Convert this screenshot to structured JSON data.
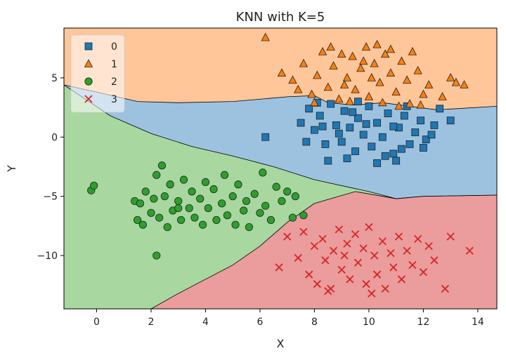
{
  "chart_data": {
    "type": "scatter",
    "title": "KNN with K=5",
    "xlabel": "X",
    "ylabel": "Y",
    "xlim": [
      -1.2,
      14.7
    ],
    "ylim": [
      -14.5,
      9.2
    ],
    "x_ticks": [
      0,
      2,
      4,
      6,
      8,
      10,
      12,
      14
    ],
    "x_tick_labels": [
      "0",
      "2",
      "4",
      "6",
      "8",
      "10",
      "12",
      "14"
    ],
    "y_ticks": [
      5,
      0,
      -5,
      -10
    ],
    "y_tick_labels": [
      "5",
      "0",
      "−5",
      "−10"
    ],
    "legend_position": "top-left",
    "grid": false,
    "legend": [
      {
        "label": "0",
        "marker": "square",
        "color": "#1f77b4"
      },
      {
        "label": "1",
        "marker": "triangle",
        "color": "#ff7f0e"
      },
      {
        "label": "2",
        "marker": "circle",
        "color": "#2ca02c"
      },
      {
        "label": "3",
        "marker": "x",
        "color": "#d62728"
      }
    ],
    "regions": {
      "0": {
        "color": "#9dc2e0"
      },
      "1": {
        "color": "#ffc69a"
      },
      "2": {
        "color": "#a8d7a0"
      },
      "3": {
        "color": "#eb9c9c"
      }
    },
    "series": [
      {
        "name": "0",
        "marker": "square",
        "color": "#1f77b4",
        "points": [
          [
            6.2,
            0.0
          ],
          [
            7.5,
            1.2
          ],
          [
            7.8,
            2.4
          ],
          [
            8.0,
            0.6
          ],
          [
            8.2,
            1.8
          ],
          [
            8.4,
            -0.6
          ],
          [
            8.6,
            2.8
          ],
          [
            8.8,
            1.0
          ],
          [
            9.0,
            -0.4
          ],
          [
            9.1,
            2.2
          ],
          [
            9.3,
            0.8
          ],
          [
            9.5,
            -1.2
          ],
          [
            9.6,
            1.6
          ],
          [
            9.8,
            0.2
          ],
          [
            10.0,
            2.6
          ],
          [
            10.1,
            -0.8
          ],
          [
            10.3,
            1.2
          ],
          [
            10.5,
            0.0
          ],
          [
            10.7,
            2.0
          ],
          [
            10.9,
            -1.4
          ],
          [
            11.1,
            0.8
          ],
          [
            11.3,
            1.8
          ],
          [
            11.5,
            -0.6
          ],
          [
            11.7,
            0.4
          ],
          [
            11.9,
            1.4
          ],
          [
            12.1,
            -0.2
          ],
          [
            12.4,
            1.0
          ],
          [
            12.6,
            2.4
          ],
          [
            13.0,
            1.4
          ],
          [
            8.5,
            -2.0
          ],
          [
            9.2,
            -1.8
          ],
          [
            10.6,
            -1.6
          ],
          [
            11.0,
            -2.0
          ],
          [
            8.9,
            0.3
          ],
          [
            9.9,
            1.1
          ],
          [
            10.9,
            0.9
          ],
          [
            12.3,
            0.2
          ],
          [
            8.1,
            2.9
          ],
          [
            9.6,
            3.0
          ],
          [
            11.4,
            2.6
          ],
          [
            7.7,
            -0.4
          ],
          [
            10.3,
            -2.2
          ],
          [
            12.0,
            -0.9
          ],
          [
            8.3,
            0.9
          ],
          [
            9.4,
            2.1
          ],
          [
            11.2,
            -1.0
          ]
        ]
      },
      {
        "name": "1",
        "marker": "triangle",
        "color": "#ff7f0e",
        "points": [
          [
            6.2,
            8.4
          ],
          [
            6.8,
            5.4
          ],
          [
            7.2,
            4.8
          ],
          [
            7.6,
            6.2
          ],
          [
            7.9,
            3.6
          ],
          [
            8.1,
            5.2
          ],
          [
            8.3,
            7.2
          ],
          [
            8.5,
            4.2
          ],
          [
            8.7,
            6.0
          ],
          [
            8.9,
            3.2
          ],
          [
            9.0,
            7.0
          ],
          [
            9.2,
            5.0
          ],
          [
            9.4,
            6.8
          ],
          [
            9.5,
            4.0
          ],
          [
            9.7,
            5.8
          ],
          [
            9.9,
            7.6
          ],
          [
            10.0,
            3.4
          ],
          [
            10.2,
            6.2
          ],
          [
            10.4,
            4.6
          ],
          [
            10.6,
            7.0
          ],
          [
            10.8,
            5.4
          ],
          [
            11.0,
            3.8
          ],
          [
            11.2,
            6.4
          ],
          [
            11.4,
            4.8
          ],
          [
            11.6,
            7.2
          ],
          [
            11.8,
            5.6
          ],
          [
            12.0,
            3.6
          ],
          [
            12.2,
            4.4
          ],
          [
            13.0,
            5.0
          ],
          [
            13.5,
            4.4
          ],
          [
            11.5,
            2.8
          ],
          [
            10.5,
            2.9
          ],
          [
            9.3,
            3.0
          ],
          [
            8.0,
            2.9
          ],
          [
            9.8,
            6.4
          ],
          [
            10.8,
            7.4
          ],
          [
            9.1,
            4.4
          ],
          [
            10.1,
            5.0
          ],
          [
            11.9,
            2.7
          ],
          [
            12.7,
            3.4
          ],
          [
            8.6,
            7.6
          ],
          [
            10.3,
            7.8
          ],
          [
            11.1,
            2.6
          ],
          [
            7.4,
            4.0
          ],
          [
            13.2,
            4.6
          ]
        ]
      },
      {
        "name": "2",
        "marker": "circle",
        "color": "#2ca02c",
        "points": [
          [
            -0.2,
            -4.5
          ],
          [
            -0.1,
            -4.1
          ],
          [
            1.4,
            -5.4
          ],
          [
            1.5,
            -7.0
          ],
          [
            1.6,
            -5.6
          ],
          [
            1.7,
            -7.4
          ],
          [
            1.8,
            -4.6
          ],
          [
            2.0,
            -6.4
          ],
          [
            2.1,
            -5.2
          ],
          [
            2.2,
            -3.2
          ],
          [
            2.3,
            -6.8
          ],
          [
            2.4,
            -2.4
          ],
          [
            2.5,
            -5.0
          ],
          [
            2.6,
            -7.6
          ],
          [
            2.7,
            -4.0
          ],
          [
            2.8,
            -6.2
          ],
          [
            3.0,
            -5.4
          ],
          [
            3.1,
            -7.0
          ],
          [
            3.2,
            -3.6
          ],
          [
            3.4,
            -6.0
          ],
          [
            3.5,
            -4.6
          ],
          [
            3.6,
            -6.8
          ],
          [
            3.8,
            -5.2
          ],
          [
            3.9,
            -7.4
          ],
          [
            4.0,
            -3.8
          ],
          [
            4.1,
            -6.0
          ],
          [
            4.3,
            -4.4
          ],
          [
            4.4,
            -7.0
          ],
          [
            4.6,
            -5.6
          ],
          [
            4.7,
            -3.2
          ],
          [
            4.8,
            -6.6
          ],
          [
            5.0,
            -5.0
          ],
          [
            5.1,
            -7.4
          ],
          [
            5.2,
            -4.0
          ],
          [
            5.4,
            -6.2
          ],
          [
            5.5,
            -5.4
          ],
          [
            5.6,
            -7.6
          ],
          [
            5.8,
            -4.8
          ],
          [
            6.0,
            -6.4
          ],
          [
            6.1,
            -3.0
          ],
          [
            6.2,
            -5.8
          ],
          [
            6.4,
            -7.0
          ],
          [
            6.6,
            -4.2
          ],
          [
            6.8,
            -5.4
          ],
          [
            7.0,
            -4.6
          ],
          [
            7.2,
            -6.8
          ],
          [
            7.3,
            -5.0
          ],
          [
            7.6,
            -6.6
          ],
          [
            2.2,
            -10.0
          ],
          [
            3.0,
            -6.0
          ]
        ]
      },
      {
        "name": "3",
        "marker": "x",
        "color": "#d62728",
        "points": [
          [
            6.7,
            -11.0
          ],
          [
            7.0,
            -8.4
          ],
          [
            7.4,
            -10.2
          ],
          [
            7.6,
            -8.0
          ],
          [
            7.8,
            -11.6
          ],
          [
            8.0,
            -9.2
          ],
          [
            8.1,
            -12.4
          ],
          [
            8.3,
            -8.6
          ],
          [
            8.4,
            -10.4
          ],
          [
            8.6,
            -12.8
          ],
          [
            8.7,
            -9.6
          ],
          [
            8.9,
            -7.8
          ],
          [
            9.0,
            -11.2
          ],
          [
            9.2,
            -9.0
          ],
          [
            9.3,
            -12.0
          ],
          [
            9.5,
            -8.2
          ],
          [
            9.6,
            -10.6
          ],
          [
            9.8,
            -9.4
          ],
          [
            9.9,
            -12.4
          ],
          [
            10.0,
            -7.6
          ],
          [
            10.2,
            -10.0
          ],
          [
            10.3,
            -11.6
          ],
          [
            10.5,
            -8.8
          ],
          [
            10.6,
            -12.8
          ],
          [
            10.8,
            -9.8
          ],
          [
            10.9,
            -11.0
          ],
          [
            11.1,
            -8.4
          ],
          [
            11.2,
            -12.0
          ],
          [
            11.4,
            -9.6
          ],
          [
            11.6,
            -10.8
          ],
          [
            11.8,
            -8.6
          ],
          [
            12.0,
            -11.4
          ],
          [
            12.2,
            -9.2
          ],
          [
            12.4,
            -10.4
          ],
          [
            13.0,
            -8.4
          ],
          [
            12.8,
            -12.8
          ],
          [
            13.7,
            -9.6
          ],
          [
            10.1,
            -13.2
          ],
          [
            8.5,
            -13.0
          ],
          [
            9.1,
            -10.0
          ]
        ]
      }
    ]
  }
}
